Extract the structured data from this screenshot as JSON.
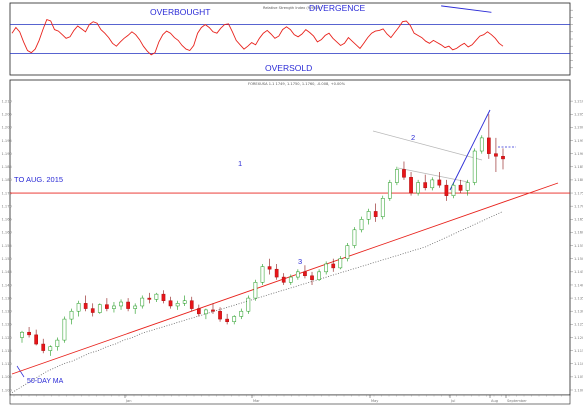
{
  "colors": {
    "frame": "#222222",
    "rsi_line": "#e8231d",
    "rsi_guides": "#2030c0",
    "candle_up_outline": "#1e9a1e",
    "candle_down_fill": "#e8151a",
    "trendline_red": "#e8231d",
    "divergence_line": "#2b2bd6",
    "ma_dots": "#666666",
    "annotation_text": "#2b2bd6",
    "wedge_grey": "#b8b8b8"
  },
  "rsi_panel": {
    "header": "Relative Strength Index (9.9500)",
    "overbought_label": "OVERBOUGHT",
    "divergence_label": "DIVERGENCE",
    "oversold_label": "OVERSOLD",
    "overbought_level": 70,
    "oversold_level": 30
  },
  "price_panel": {
    "header": "FOREXUSA 1.1 1749, 1.1750, 1.1760, -0.008, +0.00%",
    "horizontal_label": "TO AUG. 2015",
    "annotation_1": "1",
    "annotation_2": "2",
    "annotation_3": "3",
    "ma_label": "50-DAY MA"
  },
  "time_axis": {
    "labels": [
      "Jan",
      "Mar",
      "May",
      "Jul",
      "Aug",
      "September"
    ]
  },
  "chart_data": [
    {
      "type": "line",
      "name_hint": "RSI",
      "ylim": [
        0,
        100
      ],
      "grid": false,
      "guides": [
        70,
        30
      ],
      "values": [
        58,
        66,
        60,
        46,
        34,
        31,
        36,
        48,
        63,
        77,
        75,
        63,
        61,
        56,
        51,
        53,
        62,
        68,
        64,
        60,
        70,
        74,
        72,
        63,
        58,
        52,
        44,
        40,
        46,
        51,
        55,
        60,
        56,
        49,
        40,
        33,
        28,
        31,
        46,
        56,
        61,
        58,
        52,
        48,
        41,
        36,
        34,
        41,
        58,
        66,
        70,
        66,
        60,
        58,
        65,
        70,
        71,
        60,
        48,
        42,
        36,
        40,
        45,
        42,
        51,
        58,
        62,
        57,
        51,
        54,
        63,
        67,
        63,
        56,
        53,
        57,
        63,
        59,
        54,
        46,
        49,
        55,
        58,
        51,
        46,
        41,
        44,
        52,
        47,
        42,
        37,
        44,
        52,
        58,
        61,
        62,
        64,
        57,
        52,
        59,
        66,
        74,
        75,
        69,
        58,
        55,
        52,
        47,
        44,
        48,
        45,
        42,
        38,
        40,
        35,
        37,
        41,
        44,
        39,
        42,
        48,
        54,
        56,
        60,
        56,
        51,
        44,
        40
      ],
      "divergence": {
        "from_x": 111,
        "to_x": 124,
        "from_y": 96,
        "to_y": 87
      }
    },
    {
      "type": "candlestick",
      "ylim": [
        1.1,
        1.215
      ],
      "tick_labels": [
        "1.210",
        "1.205",
        "1.200",
        "1.195",
        "1.190",
        "1.185",
        "1.180",
        "1.175",
        "1.170",
        "1.165",
        "1.160",
        "1.155",
        "1.150",
        "1.145",
        "1.140",
        "1.135",
        "1.130",
        "1.125",
        "1.120",
        "1.115",
        "1.110",
        "1.105",
        "1.100"
      ],
      "horizontal_level": 1.175,
      "ohlc": [
        [
          1.12,
          1.1225,
          1.118,
          1.122
        ],
        [
          1.122,
          1.124,
          1.12,
          1.121
        ],
        [
          1.121,
          1.123,
          1.117,
          1.1175
        ],
        [
          1.1175,
          1.1195,
          1.114,
          1.115
        ],
        [
          1.115,
          1.117,
          1.113,
          1.1165
        ],
        [
          1.1165,
          1.12,
          1.115,
          1.119
        ],
        [
          1.119,
          1.128,
          1.118,
          1.127
        ],
        [
          1.127,
          1.131,
          1.125,
          1.13
        ],
        [
          1.13,
          1.134,
          1.128,
          1.133
        ],
        [
          1.133,
          1.136,
          1.13,
          1.131
        ],
        [
          1.131,
          1.133,
          1.128,
          1.1295
        ],
        [
          1.1295,
          1.133,
          1.129,
          1.1325
        ],
        [
          1.1325,
          1.135,
          1.13,
          1.131
        ],
        [
          1.131,
          1.1335,
          1.1295,
          1.132
        ],
        [
          1.132,
          1.1345,
          1.1305,
          1.1335
        ],
        [
          1.1335,
          1.135,
          1.13,
          1.131
        ],
        [
          1.131,
          1.133,
          1.129,
          1.132
        ],
        [
          1.132,
          1.136,
          1.131,
          1.135
        ],
        [
          1.135,
          1.137,
          1.133,
          1.1345
        ],
        [
          1.1345,
          1.137,
          1.1335,
          1.1365
        ],
        [
          1.1365,
          1.138,
          1.133,
          1.134
        ],
        [
          1.134,
          1.1355,
          1.131,
          1.132
        ],
        [
          1.132,
          1.134,
          1.1305,
          1.133
        ],
        [
          1.133,
          1.136,
          1.132,
          1.134
        ],
        [
          1.134,
          1.1355,
          1.13,
          1.131
        ],
        [
          1.131,
          1.1325,
          1.128,
          1.129
        ],
        [
          1.129,
          1.131,
          1.127,
          1.1305
        ],
        [
          1.1305,
          1.133,
          1.129,
          1.13
        ],
        [
          1.13,
          1.1315,
          1.126,
          1.127
        ],
        [
          1.127,
          1.129,
          1.125,
          1.126
        ],
        [
          1.126,
          1.1285,
          1.125,
          1.128
        ],
        [
          1.128,
          1.131,
          1.127,
          1.13
        ],
        [
          1.13,
          1.136,
          1.129,
          1.135
        ],
        [
          1.135,
          1.142,
          1.134,
          1.141
        ],
        [
          1.141,
          1.148,
          1.14,
          1.147
        ],
        [
          1.147,
          1.15,
          1.144,
          1.146
        ],
        [
          1.146,
          1.148,
          1.142,
          1.143
        ],
        [
          1.143,
          1.1445,
          1.14,
          1.141
        ],
        [
          1.141,
          1.144,
          1.14,
          1.143
        ],
        [
          1.143,
          1.146,
          1.142,
          1.145
        ],
        [
          1.145,
          1.1475,
          1.1425,
          1.1435
        ],
        [
          1.1435,
          1.145,
          1.14,
          1.142
        ],
        [
          1.142,
          1.146,
          1.1415,
          1.145
        ],
        [
          1.145,
          1.149,
          1.144,
          1.148
        ],
        [
          1.148,
          1.15,
          1.145,
          1.1465
        ],
        [
          1.1465,
          1.151,
          1.146,
          1.15
        ],
        [
          1.15,
          1.156,
          1.149,
          1.155
        ],
        [
          1.155,
          1.162,
          1.154,
          1.161
        ],
        [
          1.161,
          1.166,
          1.16,
          1.165
        ],
        [
          1.165,
          1.169,
          1.163,
          1.168
        ],
        [
          1.168,
          1.171,
          1.164,
          1.166
        ],
        [
          1.166,
          1.174,
          1.165,
          1.173
        ],
        [
          1.173,
          1.18,
          1.172,
          1.179
        ],
        [
          1.179,
          1.185,
          1.178,
          1.184
        ],
        [
          1.184,
          1.187,
          1.18,
          1.181
        ],
        [
          1.181,
          1.183,
          1.174,
          1.175
        ],
        [
          1.175,
          1.18,
          1.174,
          1.179
        ],
        [
          1.179,
          1.182,
          1.176,
          1.177
        ],
        [
          1.177,
          1.181,
          1.176,
          1.18
        ],
        [
          1.18,
          1.183,
          1.177,
          1.178
        ],
        [
          1.178,
          1.18,
          1.172,
          1.174
        ],
        [
          1.174,
          1.179,
          1.173,
          1.178
        ],
        [
          1.178,
          1.18,
          1.175,
          1.176
        ],
        [
          1.176,
          1.18,
          1.174,
          1.179
        ],
        [
          1.179,
          1.192,
          1.178,
          1.191
        ],
        [
          1.191,
          1.197,
          1.19,
          1.196
        ],
        [
          1.196,
          1.205,
          1.188,
          1.19
        ],
        [
          1.19,
          1.196,
          1.183,
          1.189
        ],
        [
          1.189,
          1.192,
          1.184,
          1.188
        ]
      ]
    },
    {
      "type": "line",
      "name_hint": "50-day moving average",
      "style": "dotted",
      "values": [
        1.099,
        1.101,
        1.103,
        1.105,
        1.107,
        1.1085,
        1.11,
        1.111,
        1.1125,
        1.114,
        1.115,
        1.1165,
        1.1175,
        1.119,
        1.12,
        1.1215,
        1.1225,
        1.1235,
        1.1245,
        1.1255,
        1.1265,
        1.1275,
        1.1285,
        1.1295,
        1.1305,
        1.1315,
        1.1325,
        1.1335,
        1.1345,
        1.1355,
        1.1365,
        1.1375,
        1.1385,
        1.1395,
        1.1405,
        1.1415,
        1.1425,
        1.1435,
        1.1445,
        1.1455,
        1.1465,
        1.1475,
        1.1485,
        1.1495,
        1.1505,
        1.1515,
        1.1525,
        1.1535,
        1.1545,
        1.156,
        1.1575,
        1.159,
        1.1605,
        1.162,
        1.1635,
        1.165,
        1.1665,
        1.168
      ]
    }
  ]
}
